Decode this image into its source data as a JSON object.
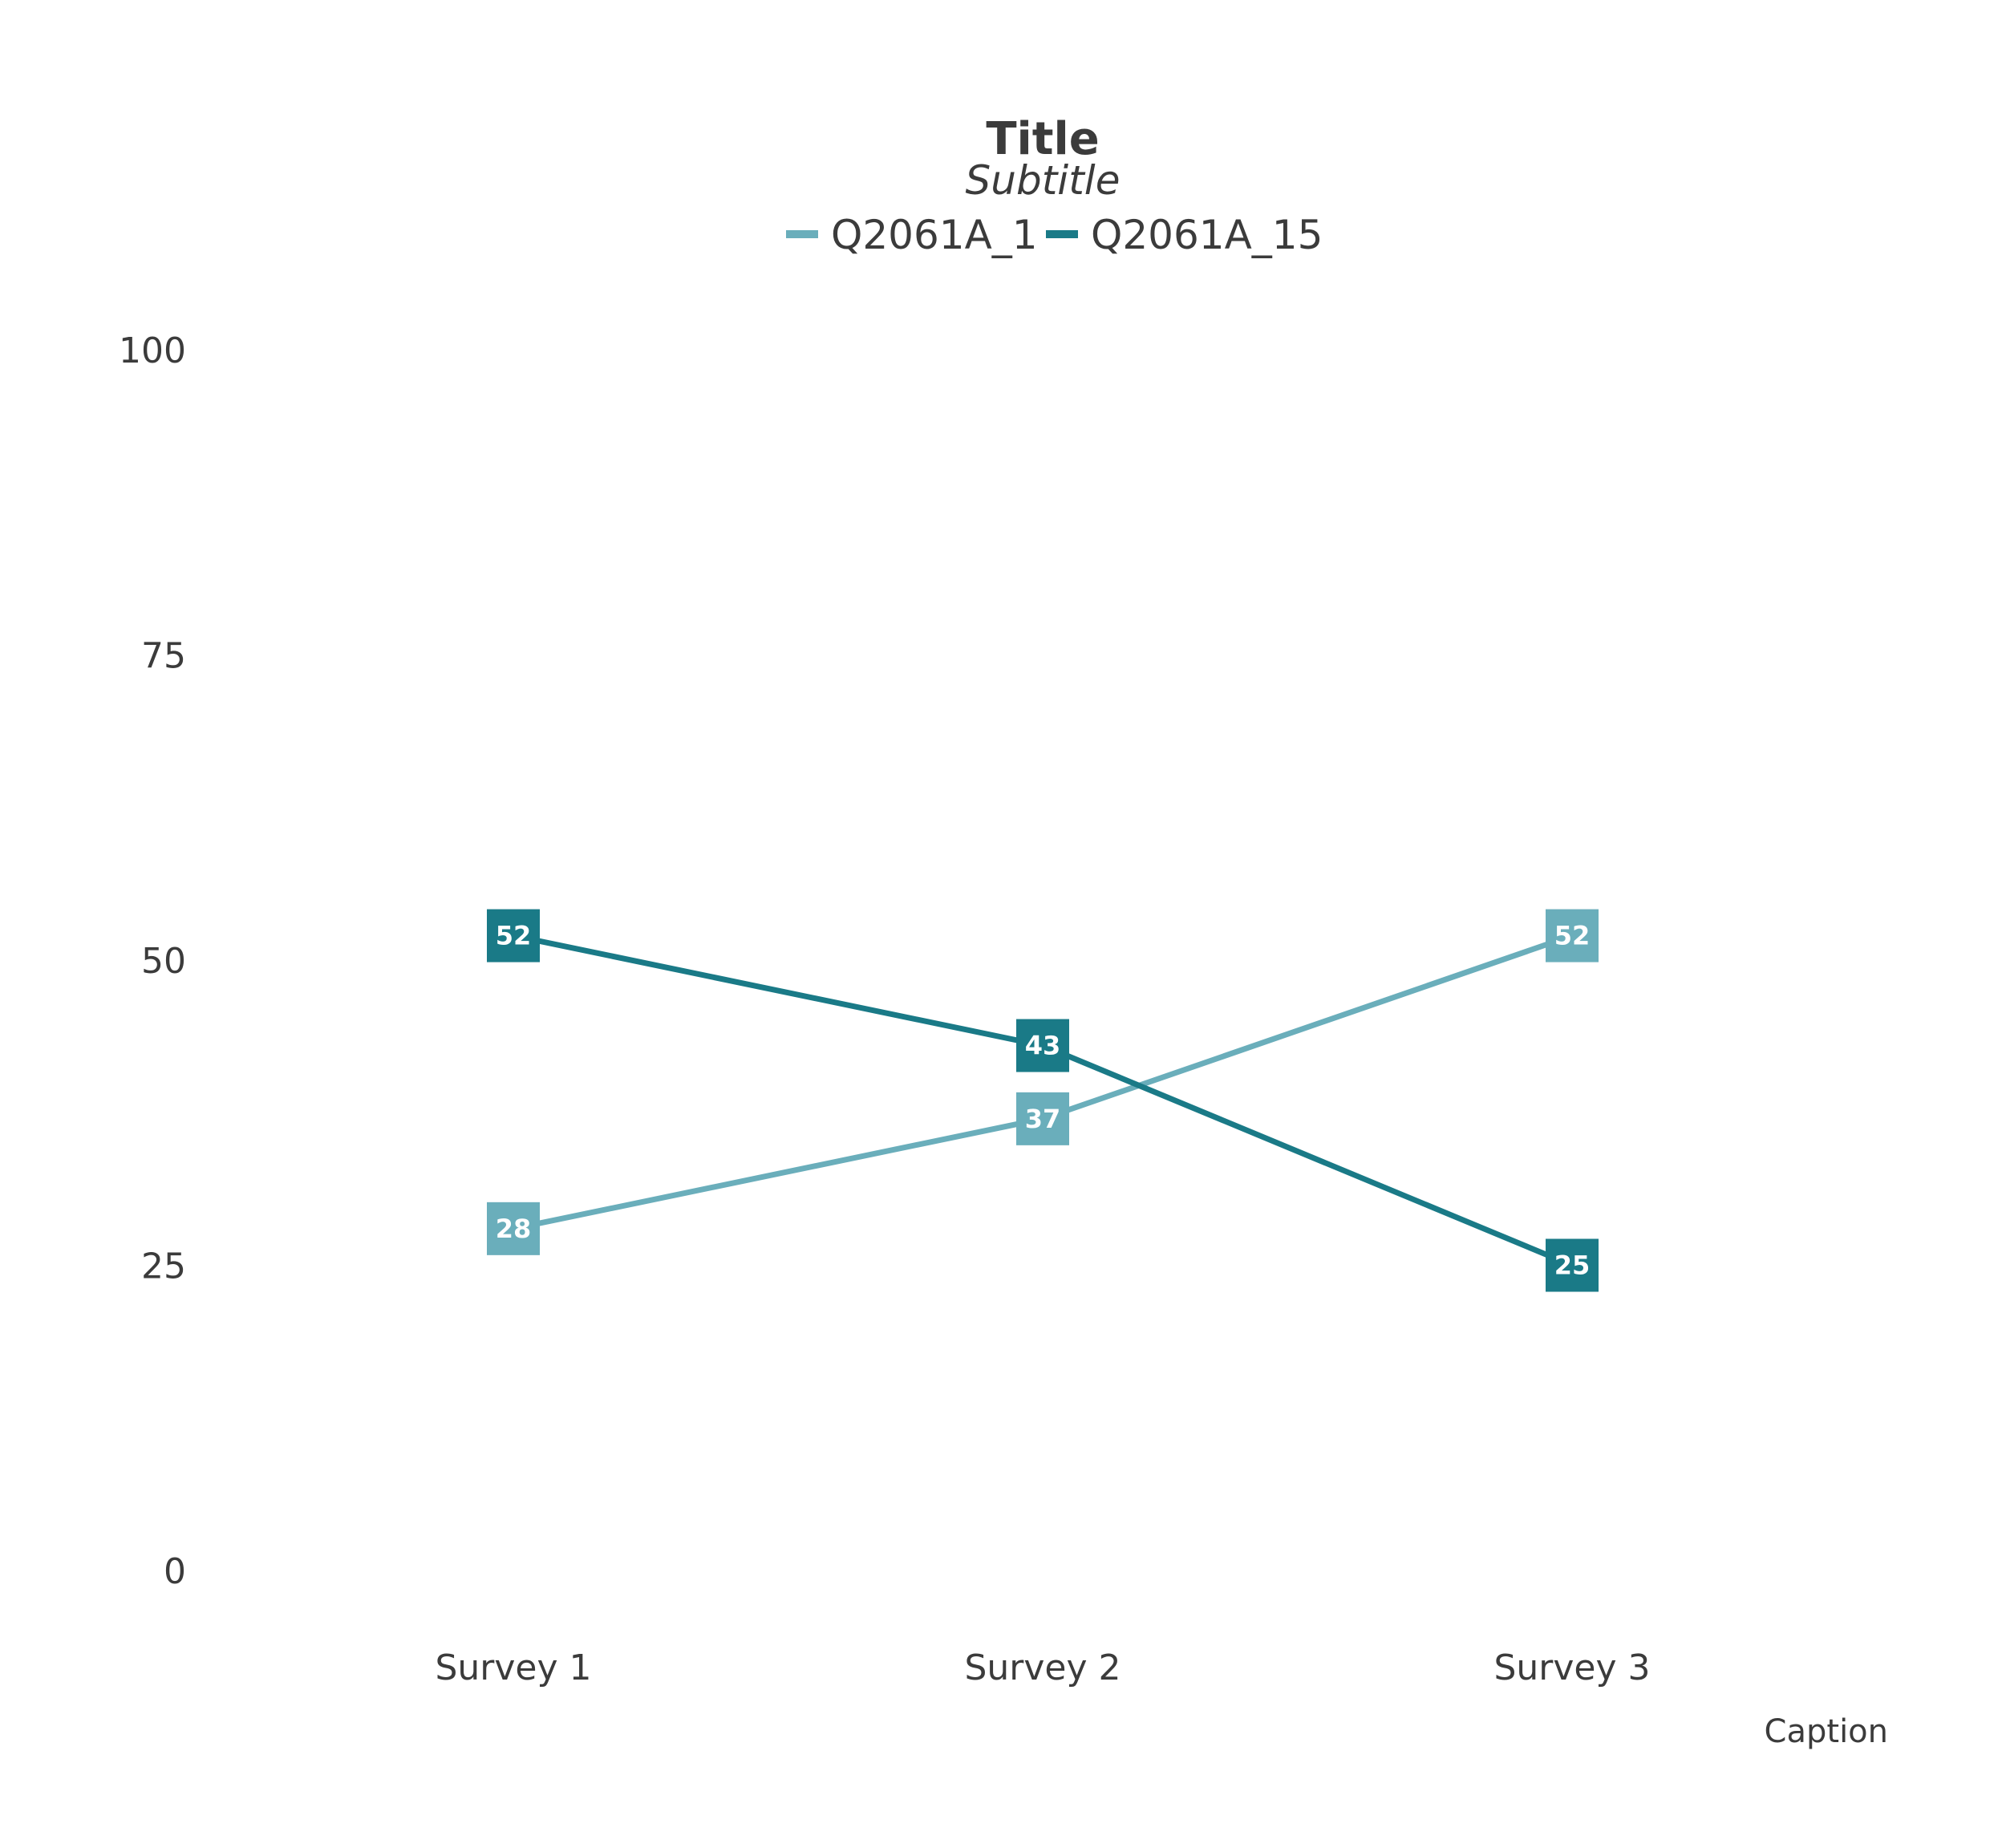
{
  "chart_data": {
    "type": "line",
    "title": "Title",
    "subtitle": "Subtitle",
    "caption": "Caption",
    "categories": [
      "Survey 1",
      "Survey 2",
      "Survey 3"
    ],
    "ylim": [
      0,
      100
    ],
    "yticks": [
      0,
      25,
      50,
      75,
      100
    ],
    "grid": false,
    "legend_position": "top",
    "series": [
      {
        "name": "Q2061A_1",
        "color": "#6aaebb",
        "values": [
          28,
          37,
          52
        ]
      },
      {
        "name": "Q2061A_15",
        "color": "#1a7a87",
        "values": [
          52,
          43,
          25
        ]
      }
    ]
  }
}
